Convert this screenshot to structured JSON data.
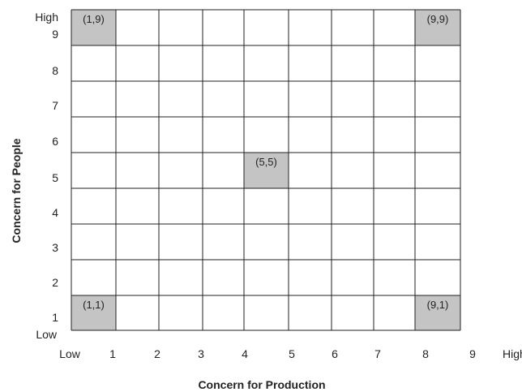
{
  "y_axis": {
    "title": "Concern for People",
    "high_label": "High",
    "low_label": "Low",
    "ticks": [
      "1",
      "2",
      "3",
      "4",
      "5",
      "6",
      "7",
      "8",
      "9"
    ]
  },
  "x_axis": {
    "title": "Concern for Production",
    "low_label": "Low",
    "high_label": "High",
    "ticks": [
      "1",
      "2",
      "3",
      "4",
      "5",
      "6",
      "7",
      "8",
      "9"
    ]
  },
  "grid": {
    "columns": 9,
    "rows": 9
  },
  "highlighted_cells": [
    {
      "col": 1,
      "row": 9,
      "label": "(1,9)"
    },
    {
      "col": 9,
      "row": 9,
      "label": "(9,9)"
    },
    {
      "col": 5,
      "row": 5,
      "label": "(5,5)"
    },
    {
      "col": 1,
      "row": 1,
      "label": "(1,1)"
    },
    {
      "col": 9,
      "row": 1,
      "label": "(9,1)"
    }
  ],
  "colors": {
    "highlight": "#c4c4c4",
    "line": "#222222",
    "background": "#ffffff"
  }
}
